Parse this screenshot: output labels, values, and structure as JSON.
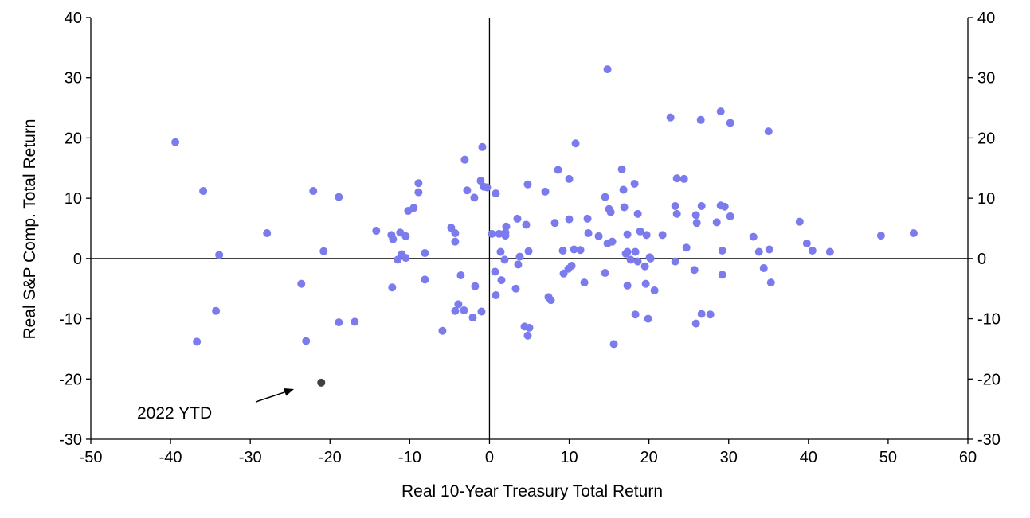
{
  "colors": {
    "series": "#7b7bee",
    "highlight": "#404040",
    "axis": "#000000"
  },
  "chart_data": {
    "type": "scatter",
    "xlabel": "Real 10-Year Treasury Total Return",
    "ylabel": "Real  S&P Comp. Total  Return",
    "xlim": [
      -50,
      60
    ],
    "ylim": [
      -30,
      40
    ],
    "x_ticks": [
      "-50",
      "-40",
      "-30",
      "-20",
      "-10",
      "0",
      "10",
      "20",
      "30",
      "40",
      "50",
      "60"
    ],
    "y_ticks": [
      "40",
      "30",
      "20",
      "10",
      "0",
      "-10",
      "-20",
      "-30"
    ],
    "grid": false,
    "series": [
      {
        "points": [
          [
            -39.4,
            19.3
          ],
          [
            -35.9,
            11.2
          ],
          [
            -33.9,
            0.6
          ],
          [
            -34.3,
            -8.7
          ],
          [
            -36.7,
            -13.8
          ],
          [
            -27.9,
            4.2
          ],
          [
            -23.6,
            -4.2
          ],
          [
            -23.0,
            -13.7
          ],
          [
            -22.1,
            11.2
          ],
          [
            -20.8,
            1.2
          ],
          [
            -18.9,
            10.2
          ],
          [
            -18.9,
            -10.6
          ],
          [
            -16.9,
            -10.5
          ],
          [
            -14.2,
            4.6
          ],
          [
            -12.3,
            3.9
          ],
          [
            -12.1,
            3.2
          ],
          [
            -12.2,
            -4.8
          ],
          [
            -11.5,
            -0.2
          ],
          [
            -11.2,
            4.3
          ],
          [
            -11.0,
            0.7
          ],
          [
            -10.5,
            3.7
          ],
          [
            -10.5,
            0.1
          ],
          [
            -10.2,
            7.9
          ],
          [
            -9.5,
            8.4
          ],
          [
            -8.9,
            12.5
          ],
          [
            -8.9,
            11.0
          ],
          [
            -8.1,
            0.9
          ],
          [
            -8.1,
            -3.5
          ],
          [
            -5.9,
            -12.0
          ],
          [
            -4.8,
            5.1
          ],
          [
            -4.3,
            2.8
          ],
          [
            -4.3,
            4.2
          ],
          [
            -4.3,
            -8.7
          ],
          [
            -3.9,
            -7.6
          ],
          [
            -3.6,
            -2.8
          ],
          [
            -3.2,
            -8.6
          ],
          [
            -3.1,
            16.4
          ],
          [
            -2.8,
            11.3
          ],
          [
            -2.1,
            -9.8
          ],
          [
            -1.9,
            10.1
          ],
          [
            -1.8,
            -4.6
          ],
          [
            -1.1,
            12.9
          ],
          [
            -1.0,
            -8.8
          ],
          [
            -0.9,
            18.5
          ],
          [
            -0.7,
            11.9
          ],
          [
            -0.3,
            11.8
          ],
          [
            0.3,
            4.1
          ],
          [
            0.7,
            -2.2
          ],
          [
            0.8,
            10.8
          ],
          [
            0.8,
            -6.1
          ],
          [
            1.2,
            4.1
          ],
          [
            1.4,
            1.1
          ],
          [
            1.5,
            -3.6
          ],
          [
            1.9,
            -0.2
          ],
          [
            2.0,
            3.8
          ],
          [
            2.0,
            4.3
          ],
          [
            2.1,
            5.3
          ],
          [
            3.3,
            -5.0
          ],
          [
            3.5,
            6.6
          ],
          [
            3.6,
            -1.0
          ],
          [
            3.8,
            0.3
          ],
          [
            4.4,
            -11.3
          ],
          [
            4.6,
            5.6
          ],
          [
            4.8,
            12.3
          ],
          [
            4.9,
            1.2
          ],
          [
            4.8,
            -12.8
          ],
          [
            5.0,
            -11.5
          ],
          [
            7.0,
            11.1
          ],
          [
            7.4,
            -6.4
          ],
          [
            7.7,
            -6.9
          ],
          [
            8.2,
            5.9
          ],
          [
            8.6,
            14.7
          ],
          [
            9.2,
            1.3
          ],
          [
            9.3,
            -2.5
          ],
          [
            9.9,
            -1.7
          ],
          [
            10.0,
            6.5
          ],
          [
            10.0,
            13.2
          ],
          [
            10.3,
            -1.2
          ],
          [
            10.6,
            1.5
          ],
          [
            10.8,
            19.1
          ],
          [
            11.4,
            1.4
          ],
          [
            11.9,
            -4.0
          ],
          [
            12.3,
            6.6
          ],
          [
            12.4,
            4.2
          ],
          [
            13.7,
            3.7
          ],
          [
            14.5,
            -2.4
          ],
          [
            14.5,
            10.2
          ],
          [
            14.8,
            2.5
          ],
          [
            14.8,
            31.4
          ],
          [
            15.0,
            8.2
          ],
          [
            15.2,
            7.7
          ],
          [
            15.4,
            2.8
          ],
          [
            15.6,
            -14.2
          ],
          [
            16.6,
            14.8
          ],
          [
            16.8,
            11.4
          ],
          [
            16.9,
            8.5
          ],
          [
            17.1,
            0.8
          ],
          [
            17.3,
            1.1
          ],
          [
            17.3,
            4.0
          ],
          [
            17.3,
            -4.5
          ],
          [
            17.7,
            -0.2
          ],
          [
            18.2,
            12.4
          ],
          [
            18.3,
            1.1
          ],
          [
            18.3,
            -9.3
          ],
          [
            18.6,
            -0.5
          ],
          [
            18.6,
            7.4
          ],
          [
            18.9,
            4.5
          ],
          [
            19.5,
            -1.3
          ],
          [
            19.6,
            -4.2
          ],
          [
            19.7,
            3.9
          ],
          [
            19.9,
            -10.0
          ],
          [
            20.1,
            0.2
          ],
          [
            20.2,
            0.0
          ],
          [
            20.7,
            -5.3
          ],
          [
            21.7,
            3.9
          ],
          [
            22.7,
            23.4
          ],
          [
            23.3,
            -0.5
          ],
          [
            23.3,
            8.7
          ],
          [
            23.5,
            13.3
          ],
          [
            23.5,
            7.4
          ],
          [
            24.4,
            13.2
          ],
          [
            24.7,
            1.8
          ],
          [
            25.7,
            -1.9
          ],
          [
            25.9,
            7.2
          ],
          [
            25.9,
            -10.8
          ],
          [
            26.0,
            5.9
          ],
          [
            26.5,
            23.0
          ],
          [
            26.6,
            8.7
          ],
          [
            26.6,
            -9.2
          ],
          [
            27.7,
            -9.3
          ],
          [
            28.5,
            6.0
          ],
          [
            29.0,
            24.4
          ],
          [
            29.0,
            8.8
          ],
          [
            29.2,
            1.3
          ],
          [
            29.2,
            -2.7
          ],
          [
            29.5,
            8.6
          ],
          [
            30.2,
            22.5
          ],
          [
            30.2,
            7.0
          ],
          [
            33.1,
            3.6
          ],
          [
            33.8,
            1.1
          ],
          [
            34.4,
            -1.6
          ],
          [
            35.0,
            21.1
          ],
          [
            35.1,
            1.5
          ],
          [
            35.3,
            -4.0
          ],
          [
            38.9,
            6.1
          ],
          [
            39.8,
            2.5
          ],
          [
            40.5,
            1.3
          ],
          [
            42.7,
            1.1
          ],
          [
            49.1,
            3.8
          ],
          [
            53.2,
            4.2
          ]
        ]
      }
    ],
    "highlight": {
      "x": -21.1,
      "y": -20.6,
      "label": "2022 YTD"
    }
  }
}
